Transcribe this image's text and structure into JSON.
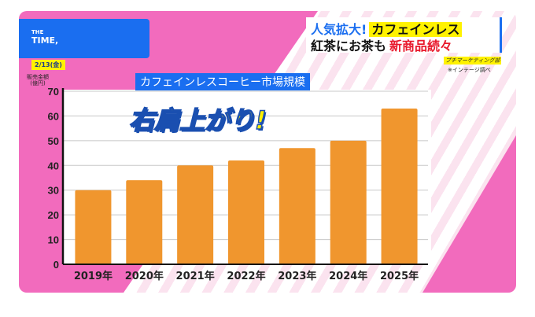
{
  "logo": {
    "small": "THE",
    "big": "TIME,"
  },
  "date": "2/13(金)",
  "headline": {
    "line1_blue": "人気拡大!",
    "line1_highlight": "カフェインレス",
    "line2_black": "紅茶にお茶も",
    "line2_red": "新商品続々"
  },
  "source": {
    "company": "プチマーケティング部",
    "note": "※インテージ調べ"
  },
  "slogan": "右肩上がり!",
  "colors": {
    "bar": "#f0962e",
    "accent": "#1a6ef0",
    "pink": "#f26bbd"
  },
  "chart_data": {
    "type": "bar",
    "title": "カフェインレスコーヒー市場規模",
    "ylabel": "販売金額",
    "yunit": "(億円)",
    "xlabel": "",
    "categories": [
      "2019年",
      "2020年",
      "2021年",
      "2022年",
      "2023年",
      "2024年",
      "2025年"
    ],
    "values": [
      30,
      34,
      40,
      42,
      47,
      50,
      63
    ],
    "ylim": [
      0,
      70
    ],
    "yticks": [
      "0",
      "10",
      "20",
      "30",
      "40",
      "50",
      "60",
      "70"
    ],
    "grid": true
  }
}
